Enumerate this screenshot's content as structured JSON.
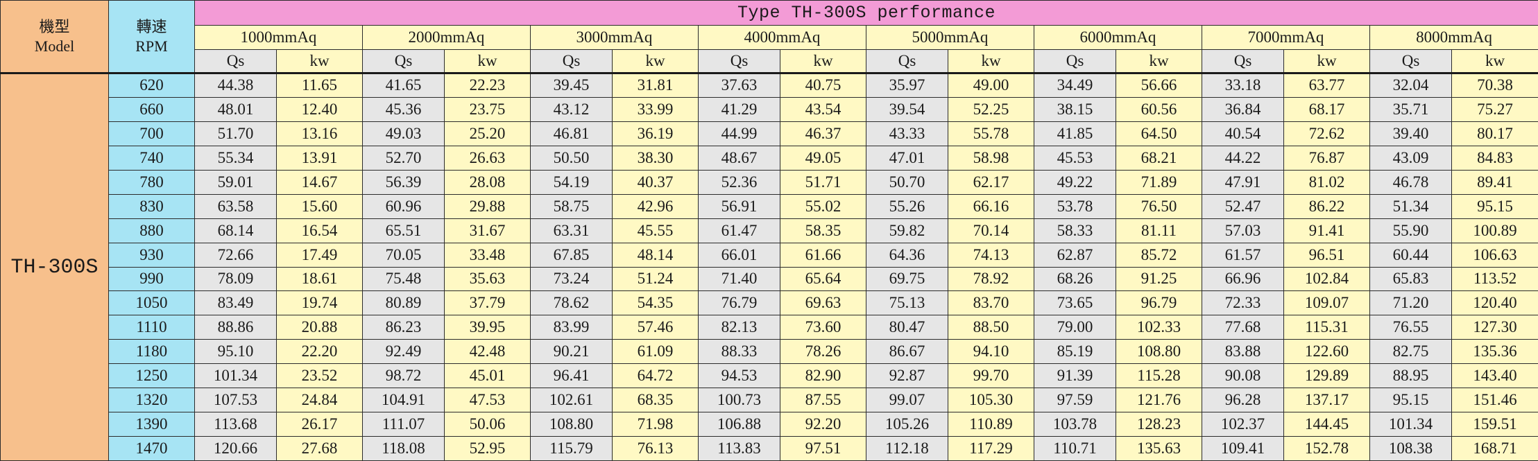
{
  "table": {
    "model_label_zh": "機型",
    "model_label_en": "Model",
    "rpm_label_zh": "轉速",
    "rpm_label_en": "RPM",
    "title": "Type TH-300S performance",
    "model_name": "TH-300S",
    "flow_label": "Qs",
    "power_label": "kw",
    "pressures": [
      "1000mmAq",
      "2000mmAq",
      "3000mmAq",
      "4000mmAq",
      "5000mmAq",
      "6000mmAq",
      "7000mmAq",
      "8000mmAq"
    ],
    "rows": [
      {
        "rpm": "620",
        "values": [
          "44.38",
          "11.65",
          "41.65",
          "22.23",
          "39.45",
          "31.81",
          "37.63",
          "40.75",
          "35.97",
          "49.00",
          "34.49",
          "56.66",
          "33.18",
          "63.77",
          "32.04",
          "70.38"
        ]
      },
      {
        "rpm": "660",
        "values": [
          "48.01",
          "12.40",
          "45.36",
          "23.75",
          "43.12",
          "33.99",
          "41.29",
          "43.54",
          "39.54",
          "52.25",
          "38.15",
          "60.56",
          "36.84",
          "68.17",
          "35.71",
          "75.27"
        ]
      },
      {
        "rpm": "700",
        "values": [
          "51.70",
          "13.16",
          "49.03",
          "25.20",
          "46.81",
          "36.19",
          "44.99",
          "46.37",
          "43.33",
          "55.78",
          "41.85",
          "64.50",
          "40.54",
          "72.62",
          "39.40",
          "80.17"
        ]
      },
      {
        "rpm": "740",
        "values": [
          "55.34",
          "13.91",
          "52.70",
          "26.63",
          "50.50",
          "38.30",
          "48.67",
          "49.05",
          "47.01",
          "58.98",
          "45.53",
          "68.21",
          "44.22",
          "76.87",
          "43.09",
          "84.83"
        ]
      },
      {
        "rpm": "780",
        "values": [
          "59.01",
          "14.67",
          "56.39",
          "28.08",
          "54.19",
          "40.37",
          "52.36",
          "51.71",
          "50.70",
          "62.17",
          "49.22",
          "71.89",
          "47.91",
          "81.02",
          "46.78",
          "89.41"
        ]
      },
      {
        "rpm": "830",
        "values": [
          "63.58",
          "15.60",
          "60.96",
          "29.88",
          "58.75",
          "42.96",
          "56.91",
          "55.02",
          "55.26",
          "66.16",
          "53.78",
          "76.50",
          "52.47",
          "86.22",
          "51.34",
          "95.15"
        ]
      },
      {
        "rpm": "880",
        "values": [
          "68.14",
          "16.54",
          "65.51",
          "31.67",
          "63.31",
          "45.55",
          "61.47",
          "58.35",
          "59.82",
          "70.14",
          "58.33",
          "81.11",
          "57.03",
          "91.41",
          "55.90",
          "100.89"
        ]
      },
      {
        "rpm": "930",
        "values": [
          "72.66",
          "17.49",
          "70.05",
          "33.48",
          "67.85",
          "48.14",
          "66.01",
          "61.66",
          "64.36",
          "74.13",
          "62.87",
          "85.72",
          "61.57",
          "96.51",
          "60.44",
          "106.63"
        ]
      },
      {
        "rpm": "990",
        "values": [
          "78.09",
          "18.61",
          "75.48",
          "35.63",
          "73.24",
          "51.24",
          "71.40",
          "65.64",
          "69.75",
          "78.92",
          "68.26",
          "91.25",
          "66.96",
          "102.84",
          "65.83",
          "113.52"
        ]
      },
      {
        "rpm": "1050",
        "values": [
          "83.49",
          "19.74",
          "80.89",
          "37.79",
          "78.62",
          "54.35",
          "76.79",
          "69.63",
          "75.13",
          "83.70",
          "73.65",
          "96.79",
          "72.33",
          "109.07",
          "71.20",
          "120.40"
        ]
      },
      {
        "rpm": "1110",
        "values": [
          "88.86",
          "20.88",
          "86.23",
          "39.95",
          "83.99",
          "57.46",
          "82.13",
          "73.60",
          "80.47",
          "88.50",
          "79.00",
          "102.33",
          "77.68",
          "115.31",
          "76.55",
          "127.30"
        ]
      },
      {
        "rpm": "1180",
        "values": [
          "95.10",
          "22.20",
          "92.49",
          "42.48",
          "90.21",
          "61.09",
          "88.33",
          "78.26",
          "86.67",
          "94.10",
          "85.19",
          "108.80",
          "83.88",
          "122.60",
          "82.75",
          "135.36"
        ]
      },
      {
        "rpm": "1250",
        "values": [
          "101.34",
          "23.52",
          "98.72",
          "45.01",
          "96.41",
          "64.72",
          "94.53",
          "82.90",
          "92.87",
          "99.70",
          "91.39",
          "115.28",
          "90.08",
          "129.89",
          "88.95",
          "143.40"
        ]
      },
      {
        "rpm": "1320",
        "values": [
          "107.53",
          "24.84",
          "104.91",
          "47.53",
          "102.61",
          "68.35",
          "100.73",
          "87.55",
          "99.07",
          "105.30",
          "97.59",
          "121.76",
          "96.28",
          "137.17",
          "95.15",
          "151.46"
        ]
      },
      {
        "rpm": "1390",
        "values": [
          "113.68",
          "26.17",
          "111.07",
          "50.06",
          "108.80",
          "71.98",
          "106.88",
          "92.20",
          "105.26",
          "110.89",
          "103.78",
          "128.23",
          "102.37",
          "144.45",
          "101.34",
          "159.51"
        ]
      },
      {
        "rpm": "1470",
        "values": [
          "120.66",
          "27.68",
          "118.08",
          "52.95",
          "115.79",
          "76.13",
          "113.83",
          "97.51",
          "112.18",
          "117.29",
          "110.71",
          "135.63",
          "109.41",
          "152.78",
          "108.38",
          "168.71"
        ]
      }
    ]
  }
}
